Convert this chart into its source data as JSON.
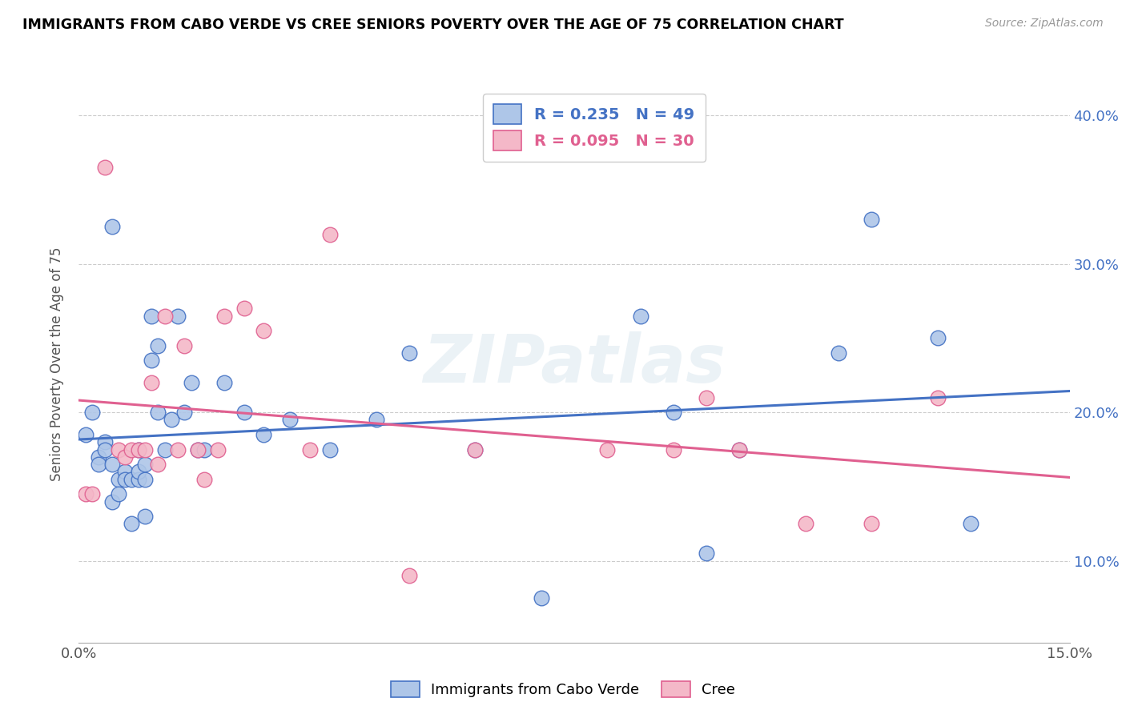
{
  "title": "IMMIGRANTS FROM CABO VERDE VS CREE SENIORS POVERTY OVER THE AGE OF 75 CORRELATION CHART",
  "source": "Source: ZipAtlas.com",
  "ylabel": "Seniors Poverty Over the Age of 75",
  "xlim": [
    0.0,
    0.15
  ],
  "ylim": [
    0.045,
    0.42
  ],
  "xticks": [
    0.0,
    0.015,
    0.03,
    0.045,
    0.06,
    0.075,
    0.09,
    0.105,
    0.12,
    0.135,
    0.15
  ],
  "xtick_labels": [
    "0.0%",
    "",
    "",
    "",
    "",
    "",
    "",
    "",
    "",
    "",
    "15.0%"
  ],
  "yticks": [
    0.1,
    0.2,
    0.3,
    0.4
  ],
  "ytick_labels": [
    "10.0%",
    "20.0%",
    "30.0%",
    "40.0%"
  ],
  "blue_color": "#AEC6E8",
  "pink_color": "#F4B8C8",
  "blue_edge_color": "#4472C4",
  "pink_edge_color": "#E06090",
  "blue_line_color": "#4472C4",
  "pink_line_color": "#E06090",
  "watermark": "ZIPatlas",
  "legend_r_blue": "0.235",
  "legend_n_blue": "49",
  "legend_r_pink": "0.095",
  "legend_n_pink": "30",
  "legend_label_blue": "Immigrants from Cabo Verde",
  "legend_label_pink": "Cree",
  "blue_x": [
    0.001,
    0.002,
    0.003,
    0.003,
    0.004,
    0.004,
    0.005,
    0.005,
    0.006,
    0.006,
    0.007,
    0.007,
    0.008,
    0.008,
    0.009,
    0.009,
    0.009,
    0.01,
    0.01,
    0.01,
    0.011,
    0.011,
    0.012,
    0.012,
    0.013,
    0.014,
    0.015,
    0.016,
    0.017,
    0.018,
    0.019,
    0.022,
    0.025,
    0.028,
    0.032,
    0.038,
    0.045,
    0.05,
    0.06,
    0.07,
    0.085,
    0.09,
    0.095,
    0.1,
    0.115,
    0.12,
    0.13,
    0.135,
    0.005
  ],
  "blue_y": [
    0.185,
    0.2,
    0.17,
    0.165,
    0.18,
    0.175,
    0.14,
    0.165,
    0.155,
    0.145,
    0.16,
    0.155,
    0.155,
    0.125,
    0.155,
    0.175,
    0.16,
    0.155,
    0.13,
    0.165,
    0.235,
    0.265,
    0.2,
    0.245,
    0.175,
    0.195,
    0.265,
    0.2,
    0.22,
    0.175,
    0.175,
    0.22,
    0.2,
    0.185,
    0.195,
    0.175,
    0.195,
    0.24,
    0.175,
    0.075,
    0.265,
    0.2,
    0.105,
    0.175,
    0.24,
    0.33,
    0.25,
    0.125,
    0.325
  ],
  "pink_x": [
    0.001,
    0.002,
    0.004,
    0.006,
    0.007,
    0.008,
    0.009,
    0.01,
    0.011,
    0.012,
    0.013,
    0.015,
    0.016,
    0.018,
    0.019,
    0.021,
    0.022,
    0.025,
    0.028,
    0.035,
    0.038,
    0.05,
    0.06,
    0.08,
    0.09,
    0.095,
    0.1,
    0.11,
    0.12,
    0.13
  ],
  "pink_y": [
    0.145,
    0.145,
    0.365,
    0.175,
    0.17,
    0.175,
    0.175,
    0.175,
    0.22,
    0.165,
    0.265,
    0.175,
    0.245,
    0.175,
    0.155,
    0.175,
    0.265,
    0.27,
    0.255,
    0.175,
    0.32,
    0.09,
    0.175,
    0.175,
    0.175,
    0.21,
    0.175,
    0.125,
    0.125,
    0.21
  ]
}
